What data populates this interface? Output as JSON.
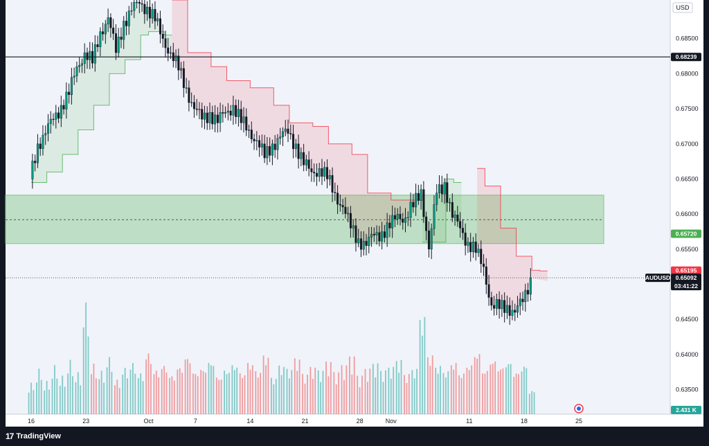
{
  "chart_data": {
    "type": "candlestick",
    "symbol": "AUDUSD",
    "currency_label": "USD",
    "ylim": [
      0.6315,
      0.6905
    ],
    "y_ticks": [
      0.685,
      0.68,
      0.675,
      0.67,
      0.665,
      0.66,
      0.655,
      0.645,
      0.64,
      0.635
    ],
    "y_tick_labels": [
      "0.68500",
      "0.68000",
      "0.67500",
      "0.67000",
      "0.66500",
      "0.66000",
      "0.65500",
      "0.64500",
      "0.64000",
      "0.63500"
    ],
    "x_ticks": [
      {
        "label": "16",
        "day": 0
      },
      {
        "label": "23",
        "day": 7
      },
      {
        "label": "Oct",
        "day": 15
      },
      {
        "label": "7",
        "day": 21
      },
      {
        "label": "14",
        "day": 28
      },
      {
        "label": "21",
        "day": 35
      },
      {
        "label": "28",
        "day": 42
      },
      {
        "label": "Nov",
        "day": 46
      },
      {
        "label": "11",
        "day": 56
      },
      {
        "label": "18",
        "day": 63
      },
      {
        "label": "25",
        "day": 70
      }
    ],
    "resistance_level": {
      "value": 0.68239,
      "label": "0.68239"
    },
    "zone": {
      "top": 0.6627,
      "bottom": 0.6558,
      "mid": 0.6592
    },
    "price_tags": [
      {
        "label": "0.65720",
        "value": 0.6572,
        "color": "#4caf50"
      },
      {
        "label": "0.65195",
        "value": 0.65195,
        "color": "#f23645"
      }
    ],
    "current": {
      "symbol": "AUDUSD",
      "price": "0.65092",
      "value": 0.65092,
      "countdown": "03:41:22"
    },
    "volume_label": "2.431 K",
    "closes": [
      [
        0,
        0.665
      ],
      [
        1,
        0.67
      ],
      [
        2,
        0.6715
      ],
      [
        3,
        0.6735
      ],
      [
        4,
        0.6755
      ],
      [
        5,
        0.677
      ],
      [
        6,
        0.681
      ],
      [
        7,
        0.683
      ],
      [
        8,
        0.6815
      ],
      [
        9,
        0.686
      ],
      [
        10,
        0.688
      ],
      [
        11,
        0.683
      ],
      [
        12,
        0.6875
      ],
      [
        13,
        0.689
      ],
      [
        14,
        0.69
      ],
      [
        15,
        0.6895
      ],
      [
        16,
        0.6875
      ],
      [
        17,
        0.685
      ],
      [
        18,
        0.683
      ],
      [
        19,
        0.6805
      ],
      [
        20,
        0.678
      ],
      [
        21,
        0.675
      ],
      [
        22,
        0.6735
      ],
      [
        23,
        0.6745
      ],
      [
        24,
        0.673
      ],
      [
        25,
        0.6745
      ],
      [
        26,
        0.6755
      ],
      [
        27,
        0.673
      ],
      [
        28,
        0.672
      ],
      [
        29,
        0.6705
      ],
      [
        30,
        0.668
      ],
      [
        31,
        0.67
      ],
      [
        32,
        0.671
      ],
      [
        33,
        0.6715
      ],
      [
        34,
        0.67
      ],
      [
        35,
        0.667
      ],
      [
        36,
        0.666
      ],
      [
        37,
        0.6665
      ],
      [
        38,
        0.665
      ],
      [
        39,
        0.663
      ],
      [
        40,
        0.661
      ],
      [
        41,
        0.658
      ],
      [
        42,
        0.6565
      ],
      [
        43,
        0.6555
      ],
      [
        44,
        0.657
      ],
      [
        45,
        0.6575
      ],
      [
        46,
        0.658
      ],
      [
        47,
        0.66
      ],
      [
        48,
        0.6595
      ],
      [
        49,
        0.661
      ],
      [
        50,
        0.6635
      ],
      [
        51,
        0.655
      ],
      [
        52,
        0.663
      ],
      [
        53,
        0.6645
      ],
      [
        54,
        0.6595
      ],
      [
        55,
        0.658
      ],
      [
        56,
        0.656
      ],
      [
        57,
        0.6545
      ],
      [
        58,
        0.6525
      ],
      [
        59,
        0.647
      ],
      [
        60,
        0.6465
      ],
      [
        61,
        0.647
      ],
      [
        62,
        0.646
      ],
      [
        63,
        0.6475
      ],
      [
        64,
        0.6509
      ]
    ],
    "supertrend": {
      "up": [
        [
          0,
          0.6645
        ],
        [
          2,
          0.666
        ],
        [
          4,
          0.6685
        ],
        [
          6,
          0.672
        ],
        [
          8,
          0.6755
        ],
        [
          10,
          0.68
        ],
        [
          12,
          0.682
        ],
        [
          14,
          0.6855
        ],
        [
          15,
          0.686
        ],
        [
          17,
          0.6855
        ]
      ],
      "down": [
        [
          18,
          0.6905
        ],
        [
          20,
          0.683
        ],
        [
          23,
          0.681
        ],
        [
          25,
          0.679
        ],
        [
          28,
          0.678
        ],
        [
          31,
          0.6755
        ],
        [
          33,
          0.673
        ],
        [
          36,
          0.6725
        ],
        [
          38,
          0.67
        ],
        [
          41,
          0.6685
        ],
        [
          43,
          0.663
        ],
        [
          46,
          0.662
        ],
        [
          49,
          0.662
        ]
      ],
      "up2": [
        [
          50,
          0.656
        ],
        [
          53,
          0.665
        ],
        [
          54,
          0.6645
        ]
      ],
      "down2": [
        [
          57,
          0.6665
        ],
        [
          58,
          0.664
        ],
        [
          60,
          0.658
        ],
        [
          62,
          0.654
        ],
        [
          64,
          0.652
        ],
        [
          65,
          0.6519
        ]
      ]
    },
    "volumes": [
      1.8,
      2.6,
      1.9,
      2.8,
      2.2,
      3.1,
      2.4,
      6.4,
      2.9,
      2.5,
      3.3,
      2.0,
      2.7,
      3.0,
      2.4,
      3.6,
      2.6,
      2.9,
      2.3,
      2.8,
      3.4,
      2.5,
      2.7,
      3.1,
      2.2,
      2.6,
      2.9,
      2.4,
      3.0,
      2.5,
      3.4,
      2.1,
      2.8,
      2.6,
      3.2,
      2.3,
      2.7,
      2.5,
      3.0,
      2.4,
      2.8,
      3.3,
      2.2,
      2.6,
      2.9,
      2.5,
      2.7,
      3.1,
      2.3,
      2.6,
      5.6,
      3.4,
      2.8,
      2.5,
      3.0,
      2.4,
      2.9,
      3.6,
      2.6,
      3.2,
      2.8,
      3.1,
      2.5,
      2.9,
      1.4
    ]
  },
  "footer": {
    "brand": "TradingView"
  }
}
